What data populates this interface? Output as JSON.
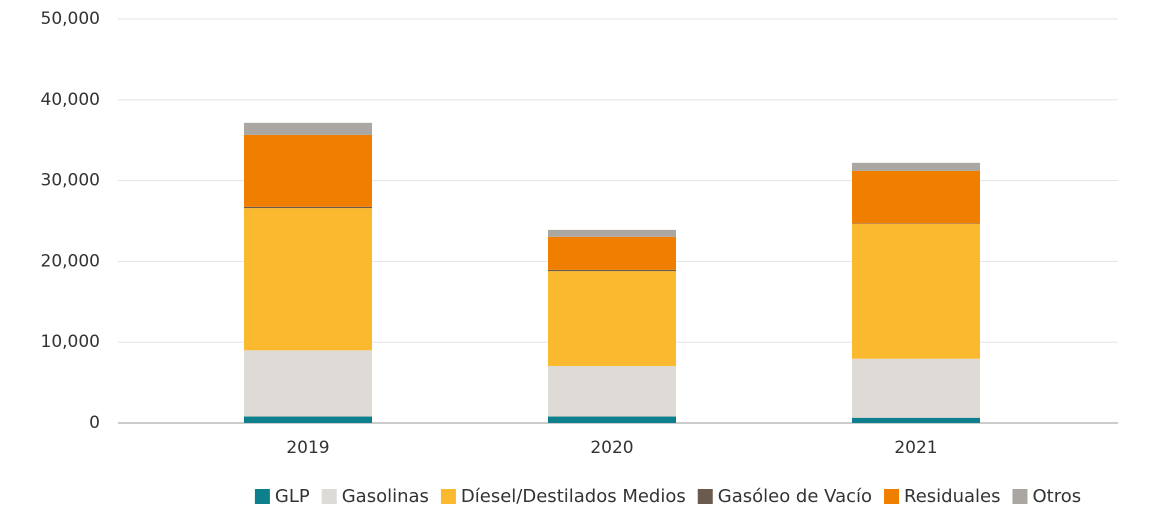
{
  "chart_data": {
    "type": "stacked_bar",
    "categories": [
      "2019",
      "2020",
      "2021"
    ],
    "series": [
      {
        "name": "GLP",
        "color": "#0e7f8c",
        "values": [
          800,
          800,
          650
        ]
      },
      {
        "name": "Gasolinas",
        "color": "#dedad6",
        "values": [
          8200,
          6250,
          7300
        ]
      },
      {
        "name": "Díesel/Destilados Medios",
        "color": "#fbb92f",
        "values": [
          17600,
          11750,
          16700
        ]
      },
      {
        "name": "Gasóleo de Vacío",
        "color": "#6b5a4e",
        "values": [
          150,
          150,
          50
        ]
      },
      {
        "name": "Residuales",
        "color": "#f07f00",
        "values": [
          8900,
          4100,
          6500
        ]
      },
      {
        "name": "Otros",
        "color": "#aaa6a2",
        "values": [
          1500,
          850,
          1000
        ]
      }
    ],
    "ylim": [
      0,
      50000
    ],
    "yticks": [
      0,
      {
        "value": 10000,
        "label": "10,000"
      },
      {
        "value": 20000,
        "label": "20,000"
      },
      {
        "value": 30000,
        "label": "30,000"
      },
      {
        "value": 40000,
        "label": "40,000"
      },
      {
        "value": 50000,
        "label": "50,000"
      }
    ],
    "grid": true,
    "legend": "bottom"
  }
}
